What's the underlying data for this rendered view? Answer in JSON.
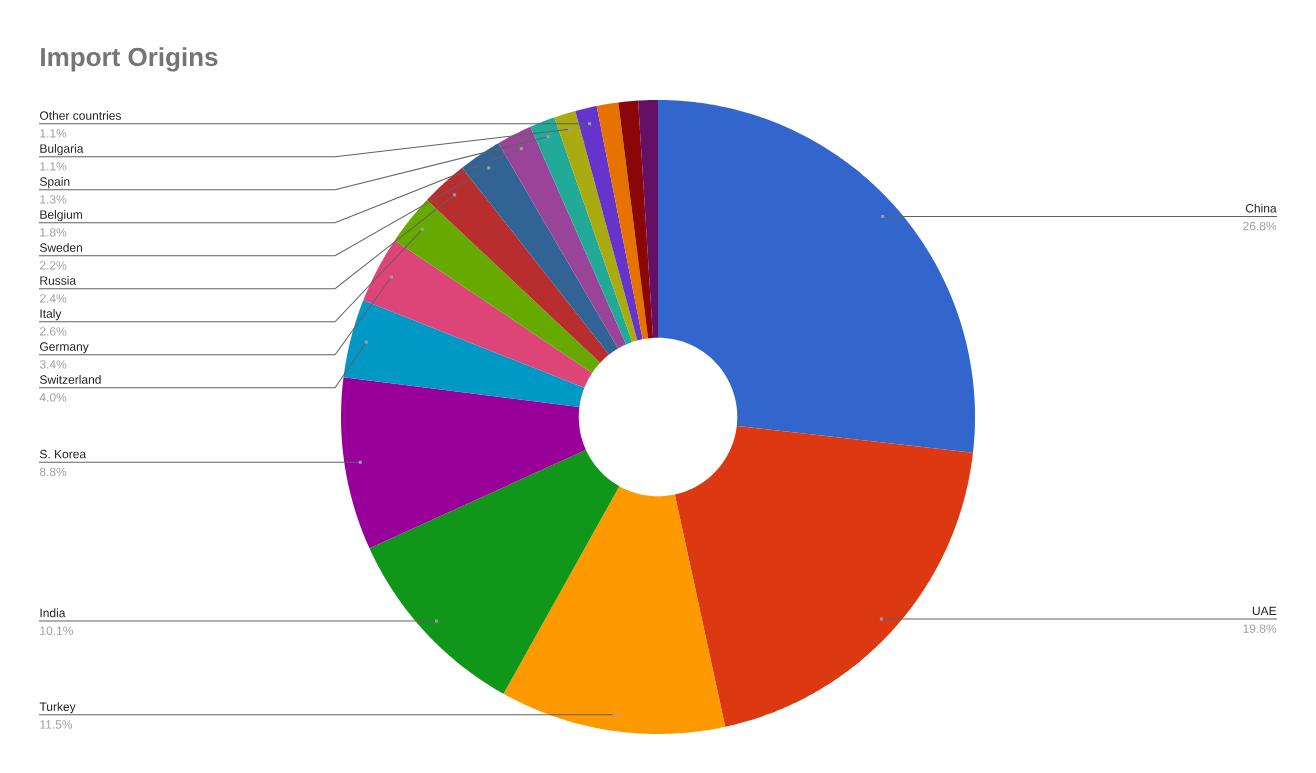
{
  "chart_data": {
    "type": "donut",
    "title": "Import Origins",
    "categories": [
      "China",
      "UAE",
      "Turkey",
      "India",
      "S. Korea",
      "Switzerland",
      "Germany",
      "Italy",
      "Russia",
      "Sweden",
      "Belgium",
      "Spain",
      "Bulgaria",
      "Other countries",
      null,
      null,
      null
    ],
    "values": [
      26.8,
      19.8,
      11.5,
      10.1,
      8.8,
      4.0,
      3.4,
      2.6,
      2.4,
      2.2,
      1.8,
      1.3,
      1.1,
      1.1,
      1.1,
      1.0,
      1.0
    ],
    "value_labels": [
      "26.8%",
      "19.8%",
      "11.5%",
      "10.1%",
      "8.8%",
      "4.0%",
      "3.4%",
      "2.6%",
      "2.4%",
      "2.2%",
      "1.8%",
      "1.3%",
      "1.1%",
      "1.1%",
      null,
      null,
      null
    ],
    "colors": [
      "#3366cc",
      "#dc3912",
      "#ff9900",
      "#109618",
      "#990099",
      "#0099c6",
      "#dd4477",
      "#66aa00",
      "#b82e2e",
      "#316395",
      "#994499",
      "#22aa99",
      "#aaaa11",
      "#6633cc",
      "#e67300",
      "#8b0707",
      "#651067"
    ]
  }
}
